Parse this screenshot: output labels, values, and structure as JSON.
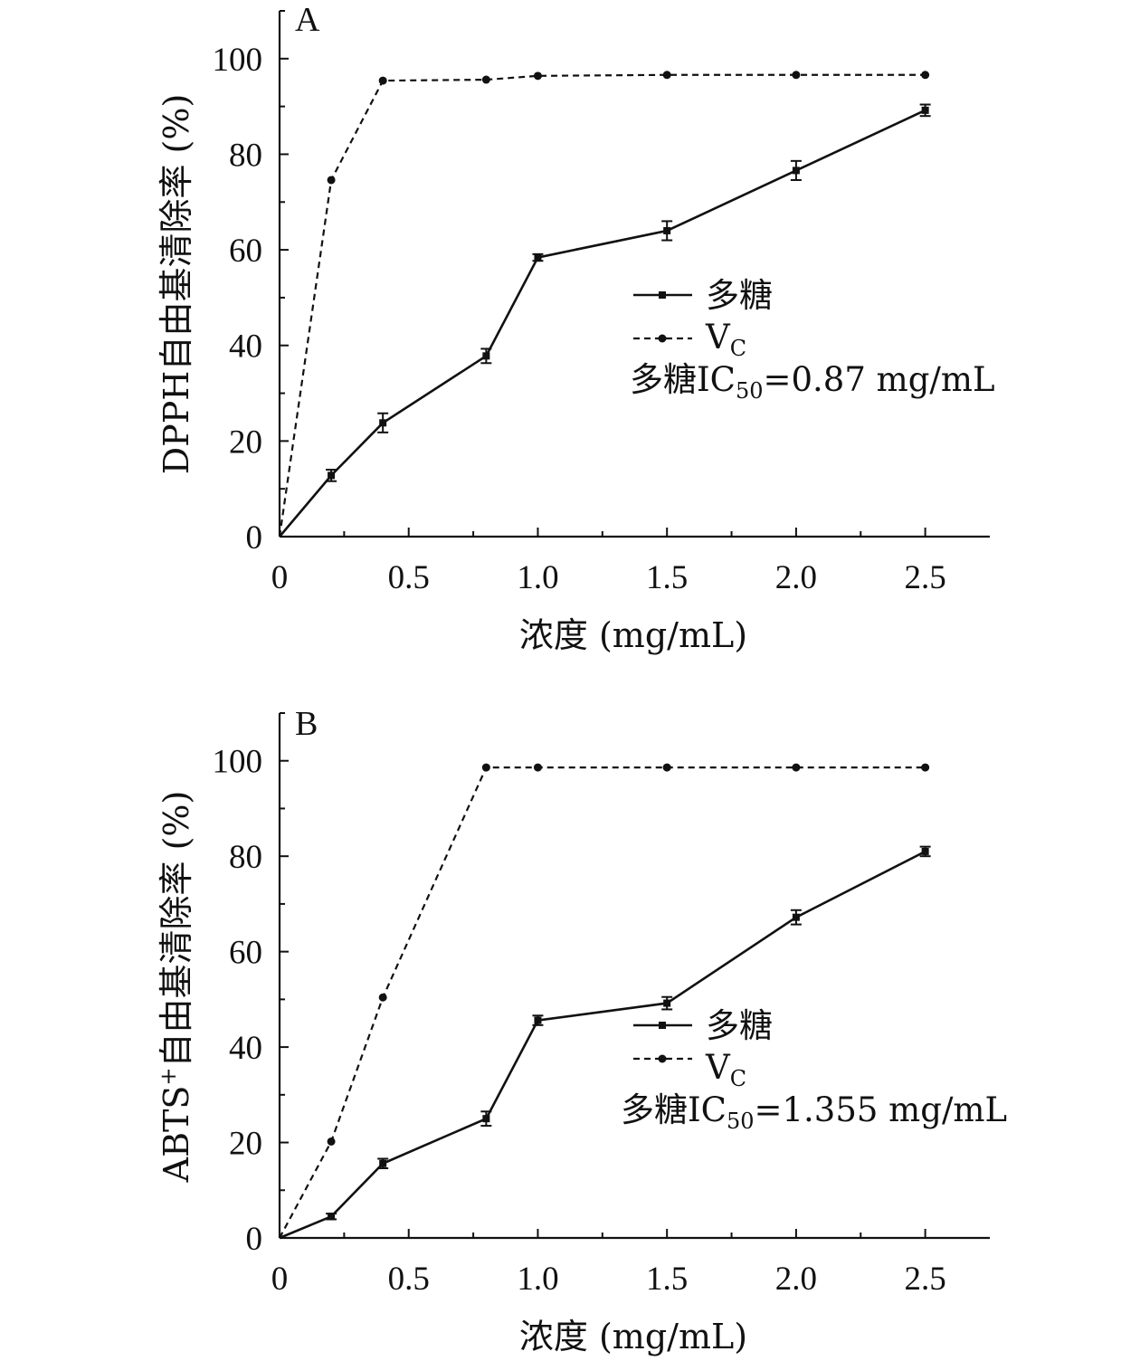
{
  "chart_data": [
    {
      "type": "line",
      "panel_label": "A",
      "x": [
        0,
        0.2,
        0.4,
        0.8,
        1.0,
        1.5,
        2.0,
        2.5
      ],
      "xlabel": "浓度 (mg/mL)",
      "ylabel": "DPPH自由基清除率 (%)",
      "xlim": [
        0,
        2.75
      ],
      "ylim": [
        0,
        110
      ],
      "xticks": [
        "0",
        "0.5",
        "1.0",
        "1.5",
        "2.0",
        "2.5"
      ],
      "xtick_values": [
        0,
        0.5,
        1.0,
        1.5,
        2.0,
        2.5
      ],
      "yticks": [
        "0",
        "20",
        "40",
        "60",
        "80",
        "100"
      ],
      "ytick_values": [
        0,
        20,
        40,
        60,
        80,
        100
      ],
      "series": [
        {
          "name": "多糖",
          "style": "solid",
          "marker": "square",
          "values": [
            0,
            12.8,
            23.8,
            37.8,
            58.4,
            64.0,
            76.6,
            89.2
          ],
          "errors": [
            0,
            1.2,
            2.0,
            1.5,
            0.7,
            2.0,
            2.0,
            1.2
          ]
        },
        {
          "name": "V",
          "name_sub": "C",
          "style": "dashed",
          "marker": "circle",
          "values": [
            0,
            74.6,
            95.4,
            95.6,
            96.4,
            96.6,
            96.6,
            96.6
          ]
        }
      ],
      "annotation": {
        "prefix": "多糖IC",
        "sub": "50",
        "suffix": "=0.87 mg/mL"
      },
      "legend_position": "center-right",
      "grid": false
    },
    {
      "type": "line",
      "panel_label": "B",
      "x": [
        0,
        0.2,
        0.4,
        0.8,
        1.0,
        1.5,
        2.0,
        2.5
      ],
      "xlabel": "浓度 (mg/mL)",
      "ylabel_main": "ABTS",
      "ylabel_sup": "+",
      "ylabel_rest": "自由基清除率 (%)",
      "xlim": [
        0,
        2.75
      ],
      "ylim": [
        0,
        110
      ],
      "xticks": [
        "0",
        "0.5",
        "1.0",
        "1.5",
        "2.0",
        "2.5"
      ],
      "xtick_values": [
        0,
        0.5,
        1.0,
        1.5,
        2.0,
        2.5
      ],
      "yticks": [
        "0",
        "20",
        "40",
        "60",
        "80",
        "100"
      ],
      "ytick_values": [
        0,
        20,
        40,
        60,
        80,
        100
      ],
      "series": [
        {
          "name": "多糖",
          "style": "solid",
          "marker": "square",
          "values": [
            0,
            4.5,
            15.6,
            25.0,
            45.6,
            49.2,
            67.2,
            81.0
          ],
          "errors": [
            0,
            0.6,
            1.0,
            1.5,
            1.0,
            1.3,
            1.5,
            1.0
          ]
        },
        {
          "name": "V",
          "name_sub": "C",
          "style": "dashed",
          "marker": "circle",
          "values": [
            0,
            20.2,
            50.4,
            98.6,
            98.6,
            98.6,
            98.6,
            98.6
          ]
        }
      ],
      "annotation": {
        "prefix": "多糖IC",
        "sub": "50",
        "suffix": "=1.355 mg/mL"
      },
      "legend_position": "center-right",
      "grid": false
    }
  ]
}
